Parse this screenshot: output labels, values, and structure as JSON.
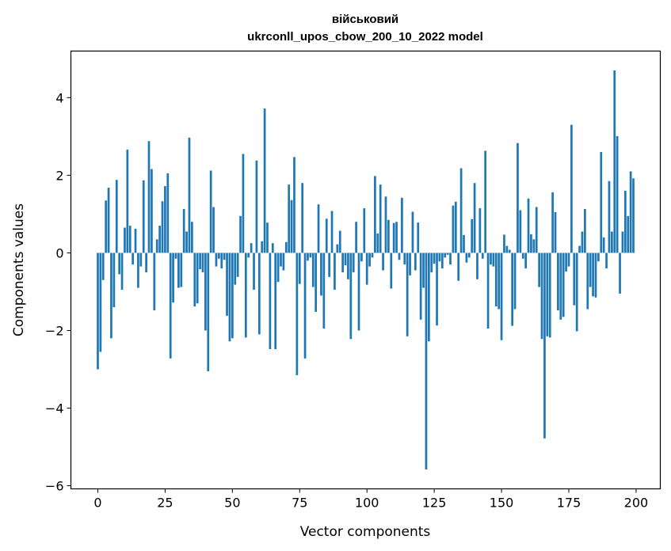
{
  "chart_data": {
    "type": "bar",
    "title_lines": [
      "військовий",
      "ukrconll_upos_cbow_200_10_2022 model"
    ],
    "xlabel": "Vector components",
    "ylabel": "Components values",
    "xlim": [
      -10,
      209
    ],
    "ylim": [
      -6.08,
      5.2
    ],
    "xticks": [
      0,
      25,
      50,
      75,
      100,
      125,
      150,
      175,
      200
    ],
    "xtick_labels": [
      "0",
      "25",
      "50",
      "75",
      "100",
      "125",
      "150",
      "175",
      "200"
    ],
    "yticks": [
      -6,
      -4,
      -2,
      0,
      2,
      4
    ],
    "ytick_labels": [
      "−6",
      "−4",
      "−2",
      "0",
      "2",
      "4"
    ],
    "grid": false,
    "bar_color": "#1f77b4",
    "x": [
      0,
      1,
      2,
      3,
      4,
      5,
      6,
      7,
      8,
      9,
      10,
      11,
      12,
      13,
      14,
      15,
      16,
      17,
      18,
      19,
      20,
      21,
      22,
      23,
      24,
      25,
      26,
      27,
      28,
      29,
      30,
      31,
      32,
      33,
      34,
      35,
      36,
      37,
      38,
      39,
      40,
      41,
      42,
      43,
      44,
      45,
      46,
      47,
      48,
      49,
      50,
      51,
      52,
      53,
      54,
      55,
      56,
      57,
      58,
      59,
      60,
      61,
      62,
      63,
      64,
      65,
      66,
      67,
      68,
      69,
      70,
      71,
      72,
      73,
      74,
      75,
      76,
      77,
      78,
      79,
      80,
      81,
      82,
      83,
      84,
      85,
      86,
      87,
      88,
      89,
      90,
      91,
      92,
      93,
      94,
      95,
      96,
      97,
      98,
      99,
      100,
      101,
      102,
      103,
      104,
      105,
      106,
      107,
      108,
      109,
      110,
      111,
      112,
      113,
      114,
      115,
      116,
      117,
      118,
      119,
      120,
      121,
      122,
      123,
      124,
      125,
      126,
      127,
      128,
      129,
      130,
      131,
      132,
      133,
      134,
      135,
      136,
      137,
      138,
      139,
      140,
      141,
      142,
      143,
      144,
      145,
      146,
      147,
      148,
      149,
      150,
      151,
      152,
      153,
      154,
      155,
      156,
      157,
      158,
      159,
      160,
      161,
      162,
      163,
      164,
      165,
      166,
      167,
      168,
      169,
      170,
      171,
      172,
      173,
      174,
      175,
      176,
      177,
      178,
      179,
      180,
      181,
      182,
      183,
      184,
      185,
      186,
      187,
      188,
      189,
      190,
      191,
      192,
      193,
      194,
      195,
      196,
      197,
      198,
      199
    ],
    "values": [
      -3.0,
      -2.55,
      -0.7,
      1.35,
      1.68,
      -2.2,
      -1.4,
      1.88,
      -0.55,
      -0.95,
      0.65,
      2.66,
      0.7,
      -0.3,
      0.62,
      -0.9,
      -0.35,
      1.87,
      -0.5,
      2.88,
      2.16,
      -1.48,
      0.35,
      0.7,
      1.33,
      1.72,
      2.05,
      -2.72,
      -1.28,
      -0.15,
      -0.9,
      -0.88,
      1.13,
      0.55,
      2.97,
      0.8,
      -1.38,
      -1.3,
      -0.42,
      -0.5,
      -2.0,
      -3.05,
      2.12,
      1.18,
      -0.35,
      -0.15,
      -0.4,
      -0.18,
      -1.62,
      -2.28,
      -2.2,
      -0.82,
      -0.62,
      0.95,
      2.55,
      -2.18,
      -0.12,
      0.25,
      -0.95,
      2.38,
      -2.1,
      0.3,
      3.72,
      0.78,
      -2.48,
      0.25,
      -2.48,
      -0.75,
      -0.35,
      -0.45,
      0.28,
      1.76,
      1.36,
      2.47,
      -3.15,
      -0.8,
      1.8,
      -2.72,
      -0.2,
      -0.12,
      -0.88,
      -1.52,
      1.25,
      -1.1,
      -1.95,
      0.88,
      -0.62,
      1.08,
      -0.95,
      0.22,
      0.57,
      -0.5,
      -0.32,
      -0.68,
      -2.22,
      -0.5,
      0.8,
      -2.0,
      -0.22,
      1.15,
      -0.82,
      -0.35,
      -0.12,
      1.98,
      0.5,
      1.76,
      -0.45,
      1.45,
      0.85,
      -0.92,
      0.77,
      0.8,
      -0.18,
      1.42,
      -0.3,
      -2.15,
      -0.58,
      1.06,
      -0.45,
      0.78,
      -1.72,
      -0.9,
      -5.58,
      -2.28,
      -0.5,
      -0.28,
      -1.87,
      -0.22,
      -0.4,
      -0.12,
      -0.05,
      -0.3,
      1.22,
      1.32,
      -0.72,
      2.18,
      0.46,
      -0.25,
      -0.12,
      0.87,
      1.8,
      -0.68,
      1.15,
      -0.15,
      2.63,
      -1.95,
      -0.3,
      -0.35,
      -1.38,
      -1.45,
      -2.25,
      0.47,
      0.18,
      0.08,
      -1.88,
      -1.45,
      2.83,
      1.1,
      -0.15,
      -0.4,
      1.4,
      0.48,
      0.35,
      1.18,
      -0.88,
      -2.22,
      -4.78,
      -2.15,
      -2.18,
      1.56,
      1.05,
      -1.48,
      -1.72,
      -1.65,
      -0.48,
      -0.35,
      3.3,
      -1.35,
      -2.02,
      0.18,
      0.55,
      1.13,
      -1.45,
      -0.88,
      -1.12,
      -1.15,
      -0.22,
      2.6,
      0.4,
      -0.4,
      1.85,
      0.55,
      4.7,
      3.01,
      -1.05,
      0.55,
      1.6,
      0.95,
      2.1,
      1.92
    ]
  }
}
